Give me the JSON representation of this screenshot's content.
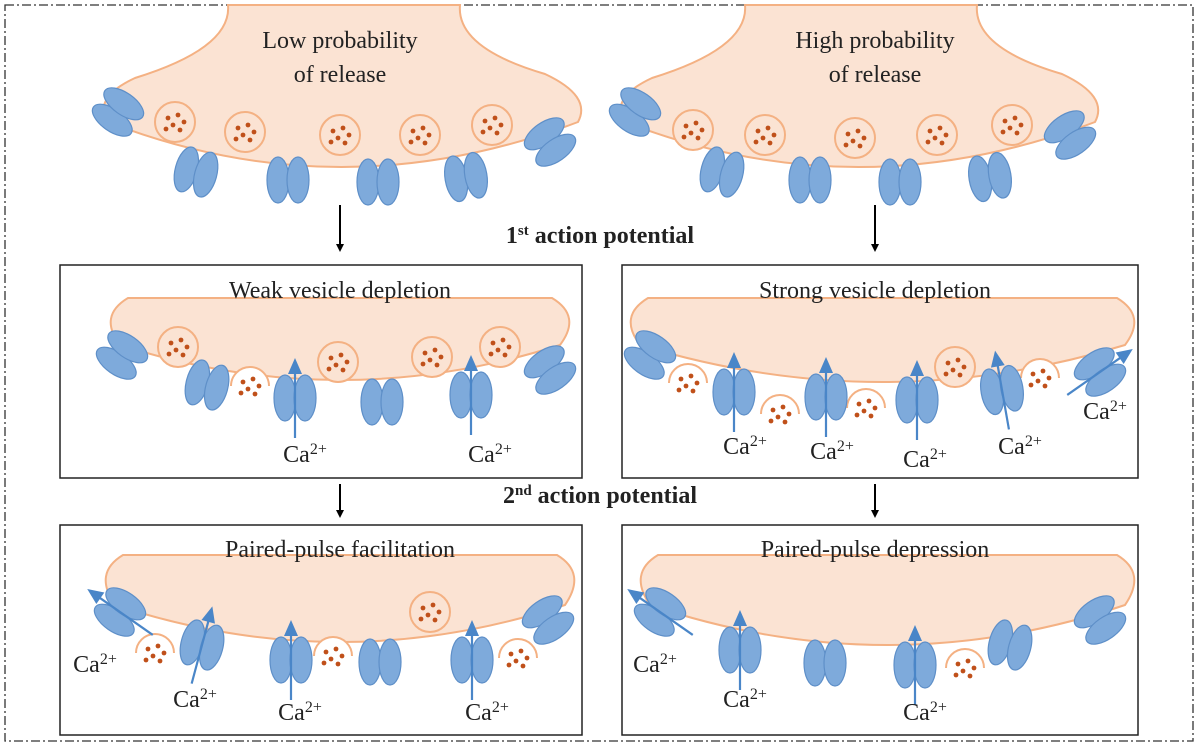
{
  "top": [
    {
      "lines": [
        "Low probability",
        "of release"
      ]
    },
    {
      "lines": [
        "High probability",
        "of release"
      ]
    }
  ],
  "steps": [
    {
      "number": "1",
      "ordinal": "st",
      "text": "action potential"
    },
    {
      "number": "2",
      "ordinal": "nd",
      "text": "action potential"
    }
  ],
  "panels": [
    {
      "title": "Weak vesicle depletion",
      "ions": [
        {
          "base": "Ca",
          "charge": "2+"
        },
        {
          "base": "Ca",
          "charge": "2+"
        }
      ]
    },
    {
      "title": "Strong vesicle depletion",
      "ions": [
        {
          "base": "Ca",
          "charge": "2+"
        },
        {
          "base": "Ca",
          "charge": "2+"
        },
        {
          "base": "Ca",
          "charge": "2+"
        },
        {
          "base": "Ca",
          "charge": "2+"
        },
        {
          "base": "Ca",
          "charge": "2+"
        }
      ]
    },
    {
      "title": "Paired-pulse facilitation",
      "ions": [
        {
          "base": "Ca",
          "charge": "2+"
        },
        {
          "base": "Ca",
          "charge": "2+"
        },
        {
          "base": "Ca",
          "charge": "2+"
        },
        {
          "base": "Ca",
          "charge": "2+"
        }
      ]
    },
    {
      "title": "Paired-pulse depression",
      "ions": [
        {
          "base": "Ca",
          "charge": "2+"
        },
        {
          "base": "Ca",
          "charge": "2+"
        },
        {
          "base": "Ca",
          "charge": "2+"
        }
      ]
    }
  ]
}
